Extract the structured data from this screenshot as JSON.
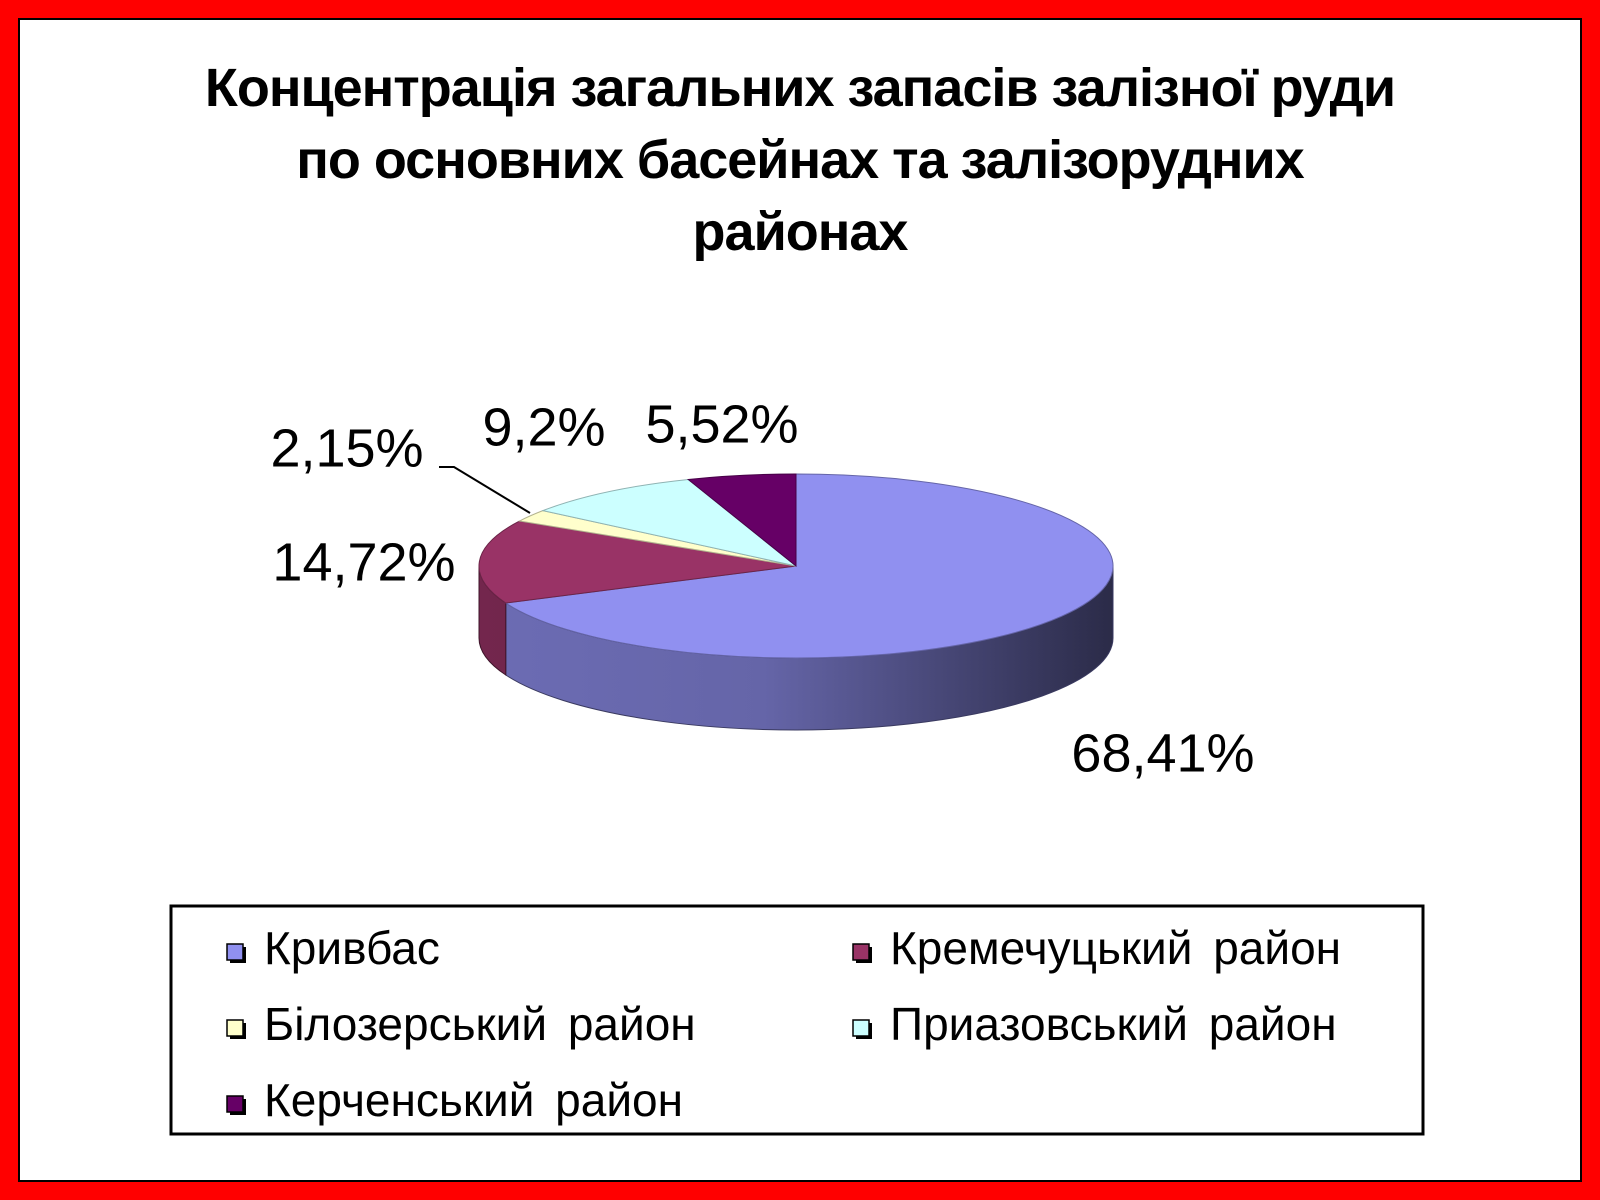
{
  "chart_data": {
    "type": "pie",
    "title": "Концентрація загальних запасів залізної руди по основних басейнах та залізорудних районах",
    "categories": [
      "Кривбас",
      "Кремечуцький район",
      "Білозерський район",
      "Приазовський район",
      "Керченський район"
    ],
    "values": [
      68.41,
      14.72,
      2.15,
      9.2,
      5.52
    ],
    "value_labels": [
      "68,41%",
      "14,72%",
      "2,15%",
      "9,2%",
      "5,52%"
    ],
    "colors": [
      "#9090f0",
      "#993366",
      "#ffffcc",
      "#ccffff",
      "#660066"
    ],
    "legend": "bottom"
  }
}
